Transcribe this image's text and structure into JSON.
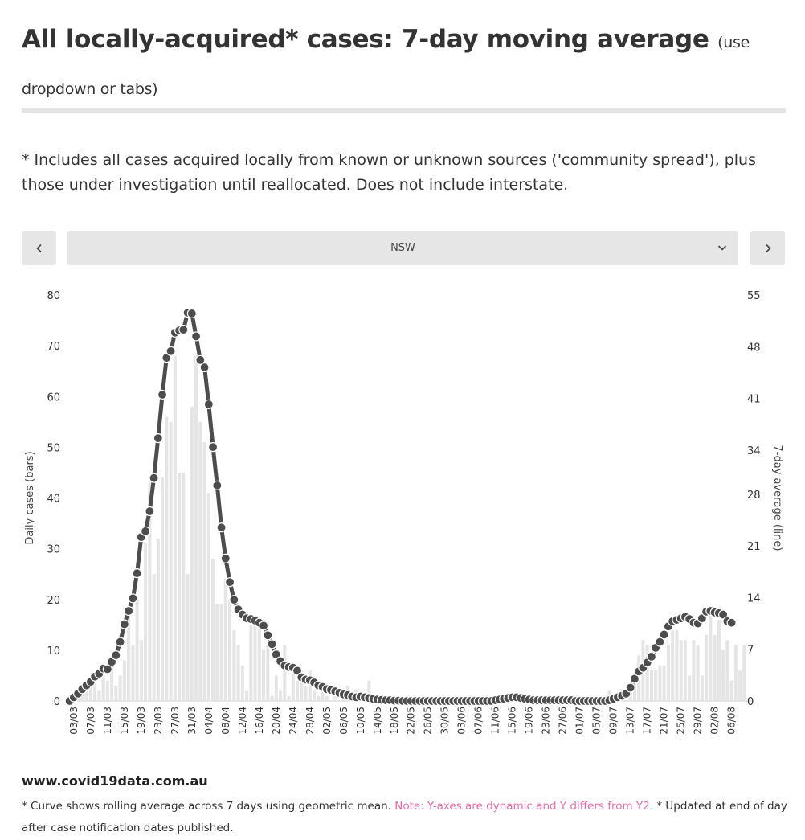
{
  "header": {
    "title": "All locally-acquired* cases: 7-day moving average",
    "title_sub": "(use dropdown or tabs)"
  },
  "note": "* Includes all cases acquired locally from known or unknown sources ('community spread'), plus those under investigation until reallocated. Does not include interstate.",
  "controls": {
    "prev_icon": "chevron-left-icon",
    "next_icon": "chevron-right-icon",
    "selected_region": "NSW",
    "dropdown_icon": "chevron-down-icon"
  },
  "footer": {
    "site": "www.covid19data.com.au",
    "text_a": "* Curve shows rolling average across 7 days using geometric mean.",
    "text_b": "Note: Y-axes are dynamic and Y differs from Y2.",
    "text_c": "* Updated at end of day after case notification dates published."
  },
  "colors": {
    "bar": "#e5e5e5",
    "line": "#4d4d4d",
    "highlight": "#e76aa6"
  },
  "chart_data": {
    "type": "bar+line",
    "start_date": "2020-03-02",
    "tick_labels": [
      "03/03",
      "07/03",
      "11/03",
      "15/03",
      "19/03",
      "23/03",
      "27/03",
      "31/03",
      "04/04",
      "08/04",
      "12/04",
      "16/04",
      "20/04",
      "24/04",
      "28/04",
      "02/05",
      "06/05",
      "10/05",
      "14/05",
      "18/05",
      "22/05",
      "26/05",
      "30/05",
      "03/06",
      "07/06",
      "11/06",
      "15/06",
      "19/06",
      "23/06",
      "27/06",
      "01/07",
      "05/07",
      "09/07",
      "13/07",
      "17/07",
      "21/07",
      "25/07",
      "29/07",
      "02/08",
      "06/08"
    ],
    "ylabel": "Daily cases (bars)",
    "y2label": "7-day average (line)",
    "y_ticks": [
      0,
      10,
      20,
      30,
      40,
      50,
      60,
      70,
      80
    ],
    "y2_ticks": [
      0,
      7,
      14,
      21,
      28,
      34,
      41,
      48,
      55
    ],
    "ylim": [
      0,
      80
    ],
    "y2lim": [
      0,
      55
    ],
    "daily_cases": [
      0,
      1,
      1,
      2,
      2,
      3,
      4,
      2,
      5,
      4,
      7,
      3,
      5,
      8,
      17,
      11,
      20,
      12,
      31,
      43,
      25,
      32,
      44,
      56,
      55,
      68,
      45,
      45,
      25,
      58,
      68,
      55,
      51,
      41,
      28,
      19,
      19,
      24,
      20,
      14,
      11,
      7,
      2,
      15,
      15,
      16,
      10,
      11,
      1,
      5,
      2,
      11,
      1,
      6,
      4,
      4,
      3,
      6,
      2,
      1,
      2,
      1,
      0,
      2,
      0,
      1,
      3,
      0,
      2,
      0,
      0,
      4,
      1,
      0,
      1,
      0,
      0,
      0,
      0,
      0,
      0,
      0,
      0,
      0,
      0,
      0,
      0,
      0,
      0,
      0,
      0,
      0,
      0,
      0,
      0,
      0,
      0,
      0,
      0,
      0,
      0,
      1,
      0,
      0,
      1,
      0,
      0,
      0,
      0,
      1,
      0,
      0,
      0,
      0,
      0,
      0,
      0,
      0,
      0,
      0,
      0,
      0,
      0,
      0,
      0,
      0,
      0,
      0,
      2,
      0,
      1,
      2,
      0,
      2,
      4,
      9,
      12,
      11,
      6,
      6,
      7,
      7,
      11,
      14,
      14,
      12,
      12,
      5,
      12,
      11,
      5,
      13,
      17,
      13,
      16,
      10,
      12,
      4,
      11,
      6,
      11
    ],
    "avg_7day": [
      0,
      0.5,
      1,
      1.6,
      2.1,
      2.6,
      3.3,
      3.7,
      4.4,
      4.3,
      5.3,
      6.2,
      8,
      10.4,
      12.2,
      13.9,
      17.3,
      22.2,
      23,
      25.7,
      30.2,
      35.6,
      41.5,
      46.5,
      47.4,
      49.9,
      50.2,
      50.3,
      52.6,
      52.5,
      49.4,
      46.2,
      45.2,
      40.2,
      34.4,
      29.2,
      23.5,
      19.3,
      16.1,
      13.7,
      12.4,
      11.7,
      11.2,
      11.1,
      10.9,
      10.6,
      10.2,
      8.9,
      7.7,
      6.3,
      5.4,
      4.8,
      4.6,
      4.5,
      4.1,
      3.2,
      2.9,
      2.8,
      2.5,
      2.1,
      1.9,
      1.6,
      1.5,
      1.3,
      1.1,
      0.9,
      0.8,
      0.6,
      0.5,
      0.6,
      0.5,
      0.4,
      0.3,
      0.2,
      0.15,
      0.1,
      0.1,
      0.05,
      0.05,
      0,
      0,
      0,
      0,
      0,
      0,
      0,
      0,
      0,
      0,
      0,
      0,
      0,
      0,
      0,
      0,
      0,
      0,
      0,
      0,
      0,
      0,
      0.1,
      0.2,
      0.3,
      0.4,
      0.5,
      0.5,
      0.4,
      0.3,
      0.2,
      0.1,
      0.1,
      0.1,
      0.1,
      0.1,
      0.1,
      0.1,
      0.1,
      0.1,
      0.1,
      0,
      0,
      0,
      0,
      0,
      0,
      0,
      0,
      0.1,
      0.3,
      0.5,
      0.7,
      1,
      1.8,
      3,
      4,
      4.5,
      5.2,
      6,
      7.2,
      8,
      9,
      10.1,
      10.8,
      11,
      11.2,
      11.4,
      11.1,
      10.6,
      10.5,
      11.2,
      12.1,
      12.2,
      12,
      11.9,
      11.7,
      10.8,
      10.6
    ]
  }
}
